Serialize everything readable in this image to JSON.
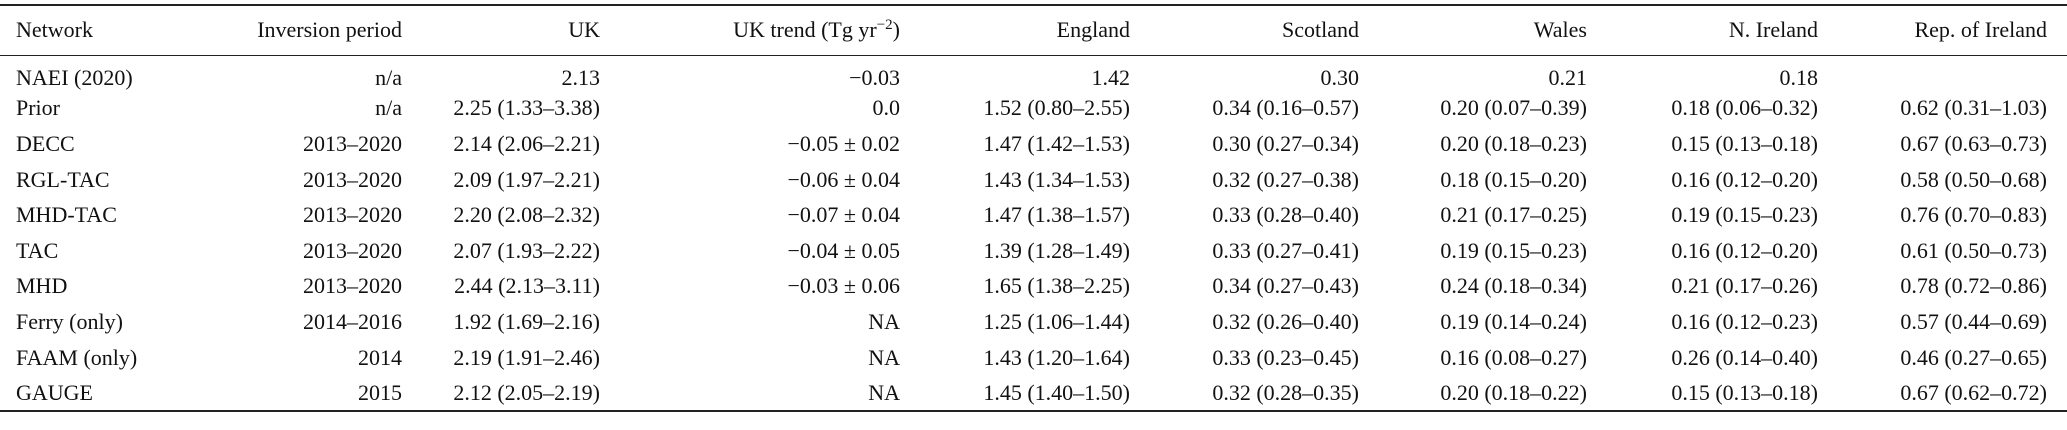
{
  "table": {
    "header": [
      "Network",
      "Inversion period",
      "UK",
      {
        "text": "UK trend (Tg yr",
        "sup": "−2",
        "tail": ")"
      },
      "England",
      "Scotland",
      "Wales",
      "N. Ireland",
      "Rep. of Ireland"
    ],
    "rows": [
      [
        "NAEI (2020)",
        "n/a",
        "2.13",
        "−0.03",
        "1.42",
        "0.30",
        "0.21",
        "0.18",
        null
      ],
      [
        "Prior",
        "n/a",
        "2.25 (1.33–3.38)",
        "0.0",
        "1.52 (0.80–2.55)",
        "0.34 (0.16–0.57)",
        "0.20 (0.07–0.39)",
        "0.18 (0.06–0.32)",
        "0.62 (0.31–1.03)"
      ],
      [
        "DECC",
        "2013–2020",
        "2.14 (2.06–2.21)",
        "−0.05 ± 0.02",
        "1.47 (1.42–1.53)",
        "0.30 (0.27–0.34)",
        "0.20 (0.18–0.23)",
        "0.15 (0.13–0.18)",
        "0.67 (0.63–0.73)"
      ],
      [
        "RGL-TAC",
        "2013–2020",
        "2.09 (1.97–2.21)",
        "−0.06 ± 0.04",
        "1.43 (1.34–1.53)",
        "0.32 (0.27–0.38)",
        "0.18 (0.15–0.20)",
        "0.16 (0.12–0.20)",
        "0.58 (0.50–0.68)"
      ],
      [
        "MHD-TAC",
        "2013–2020",
        "2.20 (2.08–2.32)",
        "−0.07 ± 0.04",
        "1.47 (1.38–1.57)",
        "0.33 (0.28–0.40)",
        "0.21 (0.17–0.25)",
        "0.19 (0.15–0.23)",
        "0.76 (0.70–0.83)"
      ],
      [
        "TAC",
        "2013–2020",
        "2.07 (1.93–2.22)",
        "−0.04 ± 0.05",
        "1.39 (1.28–1.49)",
        "0.33 (0.27–0.41)",
        "0.19 (0.15–0.23)",
        "0.16 (0.12–0.20)",
        "0.61 (0.50–0.73)"
      ],
      [
        "MHD",
        "2013–2020",
        "2.44 (2.13–3.11)",
        "−0.03 ± 0.06",
        "1.65 (1.38–2.25)",
        "0.34 (0.27–0.43)",
        "0.24 (0.18–0.34)",
        "0.21 (0.17–0.26)",
        "0.78 (0.72–0.86)"
      ],
      [
        "Ferry (only)",
        "2014–2016",
        "1.92 (1.69–2.16)",
        "NA",
        "1.25 (1.06–1.44)",
        "0.32 (0.26–0.40)",
        "0.19 (0.14–0.24)",
        "0.16 (0.12–0.23)",
        "0.57 (0.44–0.69)"
      ],
      [
        "FAAM (only)",
        "2014",
        "2.19 (1.91–2.46)",
        "NA",
        "1.43 (1.20–1.64)",
        "0.33 (0.23–0.45)",
        "0.16 (0.08–0.27)",
        "0.26 (0.14–0.40)",
        "0.46 (0.27–0.65)"
      ],
      [
        "GAUGE",
        "2015",
        "2.12 (2.05–2.19)",
        "NA",
        "1.45 (1.40–1.50)",
        "0.32 (0.28–0.35)",
        "0.20 (0.18–0.22)",
        "0.15 (0.13–0.18)",
        "0.67 (0.62–0.72)"
      ]
    ]
  }
}
